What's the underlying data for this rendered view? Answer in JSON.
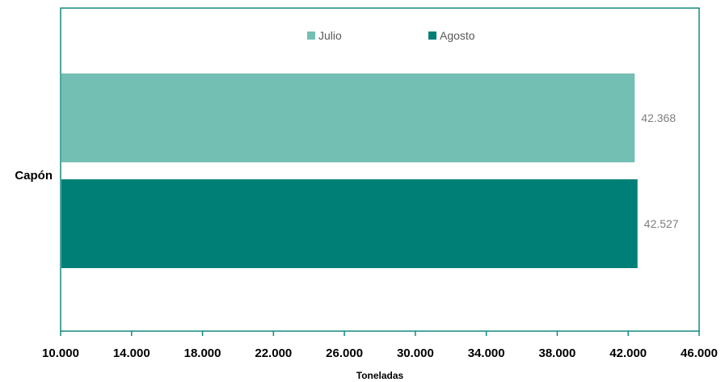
{
  "chart_data": {
    "type": "bar",
    "orientation": "horizontal",
    "categories": [
      "Capón"
    ],
    "series": [
      {
        "name": "Julio",
        "values": [
          42368
        ],
        "value_labels": [
          "42.368"
        ],
        "color": "#73bfb3"
      },
      {
        "name": "Agosto",
        "values": [
          42527
        ],
        "value_labels": [
          "42.527"
        ],
        "color": "#007f77"
      }
    ],
    "xlabel": "Toneladas",
    "ylabel": "",
    "xlim": [
      10000,
      46000
    ],
    "x_ticks": [
      10000,
      14000,
      18000,
      22000,
      26000,
      30000,
      34000,
      38000,
      42000,
      46000
    ],
    "x_tick_labels": [
      "10.000",
      "14.000",
      "18.000",
      "22.000",
      "26.000",
      "30.000",
      "34.000",
      "38.000",
      "42.000",
      "46.000"
    ],
    "grid": false,
    "legend_position": "top",
    "frame_color": "#128a80"
  }
}
